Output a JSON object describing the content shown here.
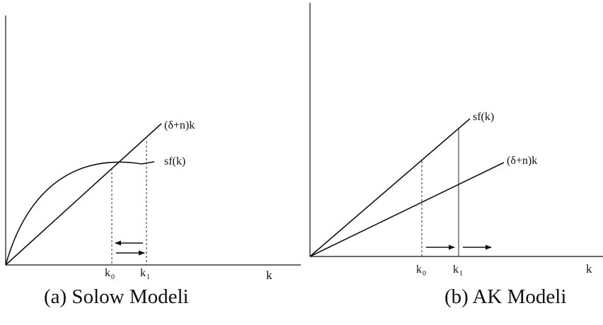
{
  "panel_a": {
    "k_axis_label": "k",
    "k0_label": "k",
    "k0_sub": "0",
    "k1_label": "k",
    "k1_sub": "1",
    "line_label": "(δ+n)k",
    "curve_label": "sf(k)",
    "caption": "(a)  Solow Modeli"
  },
  "panel_b": {
    "k_axis_label": "k",
    "k0_label": "k",
    "k0_sub": "0",
    "k1_label": "k",
    "k1_sub": "1",
    "upper_line_label": "sf(k)",
    "lower_line_label": "(δ+n)k",
    "caption": "(b) AK Modeli"
  },
  "colors": {
    "ink": "#111111"
  }
}
